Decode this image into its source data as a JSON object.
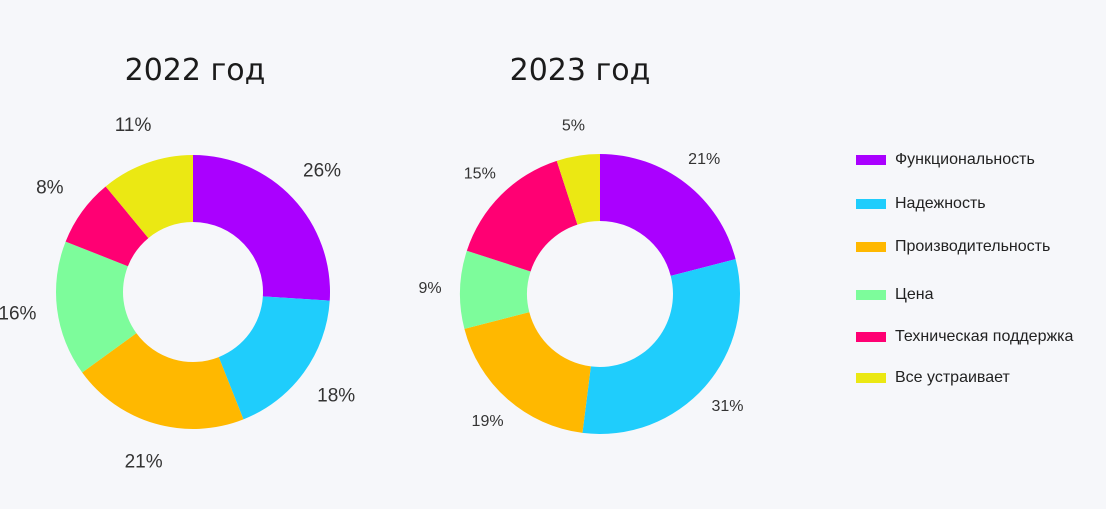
{
  "chart_data": [
    {
      "type": "donut",
      "title": "2022 год",
      "categories": [
        "Функциональность",
        "Надежность",
        "Производительность",
        "Цена",
        "Техническая поддержка",
        "Все устраивает"
      ],
      "values": [
        26,
        18,
        21,
        16,
        8,
        11
      ],
      "value_labels": [
        "26%",
        "18%",
        "21%",
        "16%",
        "8%",
        "11%"
      ],
      "colors": [
        "#aa00ff",
        "#1fcdfc",
        "#ffb800",
        "#7dfc9b",
        "#ff0073",
        "#ebe813"
      ]
    },
    {
      "type": "donut",
      "title": "2023 год",
      "categories": [
        "Функциональность",
        "Надежность",
        "Производительность",
        "Цена",
        "Техническая поддержка",
        "Все устраивает"
      ],
      "values": [
        21,
        31,
        19,
        9,
        15,
        5
      ],
      "value_labels": [
        "21%",
        "31%",
        "19%",
        "9%",
        "15%",
        "5%"
      ],
      "colors": [
        "#aa00ff",
        "#1fcdfc",
        "#ffb800",
        "#7dfc9b",
        "#ff0073",
        "#ebe813"
      ]
    }
  ],
  "legend": {
    "position": "right",
    "items": [
      {
        "label": "Функциональность",
        "color": "#aa00ff"
      },
      {
        "label": "Надежность",
        "color": "#1fcdfc"
      },
      {
        "label": "Производительность",
        "color": "#ffb800"
      },
      {
        "label": "Цена",
        "color": "#7dfc9b"
      },
      {
        "label": "Техническая поддержка",
        "color": "#ff0073"
      },
      {
        "label": "Все устраивает",
        "color": "#ebe813"
      }
    ]
  }
}
